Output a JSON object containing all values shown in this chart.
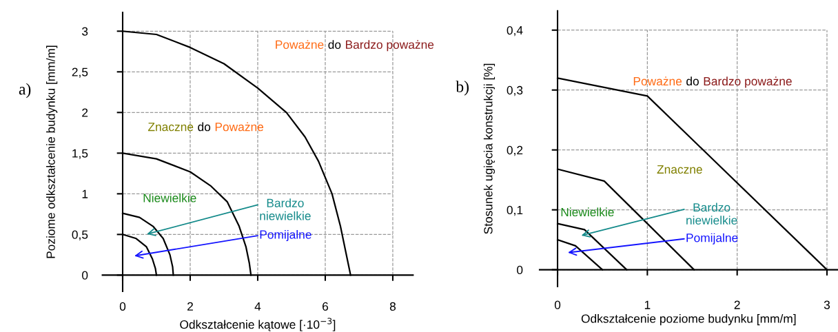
{
  "chart_data": [
    {
      "type": "line",
      "xlabel": "Odkształcenie kątowe [·10$^{−3}$]",
      "ylabel": "Poziome odkształcenie budynku [mm/m]",
      "xlim": [
        -0.6,
        8.6
      ],
      "ylim": [
        -0.2,
        3.23
      ],
      "xticks": [
        0,
        2,
        4,
        6,
        8
      ],
      "yticks": [
        0,
        {
          "value": 0.5,
          "label": "0,5"
        },
        1,
        {
          "value": 1.5,
          "label": "1,5"
        },
        2,
        {
          "value": 2.5,
          "label": "2,5"
        },
        3
      ],
      "grid": true,
      "series": [
        {
          "color": "#000000",
          "x": [
            0,
            0.4,
            0.7,
            0.88,
            0.97,
            1
          ],
          "values": [
            0.5,
            0.45,
            0.35,
            0.2,
            0.08,
            0
          ]
        },
        {
          "color": "#000000",
          "x": [
            0,
            0.5,
            0.9,
            1.2,
            1.4,
            1.48,
            1.5
          ],
          "values": [
            0.76,
            0.71,
            0.6,
            0.45,
            0.25,
            0.1,
            0
          ]
        },
        {
          "color": "#000000",
          "x": [
            0,
            1,
            2,
            2.6,
            3.1,
            3.45,
            3.65,
            3.75,
            3.8
          ],
          "values": [
            1.5,
            1.43,
            1.27,
            1.1,
            0.9,
            0.6,
            0.35,
            0.15,
            0
          ]
        },
        {
          "color": "#000000",
          "x": [
            0,
            1,
            2,
            3,
            4,
            4.85,
            5.4,
            5.8,
            6.2,
            6.45,
            6.6,
            6.75
          ],
          "values": [
            3,
            2.96,
            2.8,
            2.6,
            2.3,
            2.0,
            1.7,
            1.4,
            1.0,
            0.6,
            0.3,
            0
          ]
        }
      ],
      "annotations": [
        "a)",
        "Poważne",
        "do",
        "Bardzo poważne",
        "Znaczne",
        "do",
        "Poważne",
        "Niewielkie",
        "Bardzo\nniewielkie",
        "Pomijalne"
      ]
    },
    {
      "type": "line",
      "xlabel": "Odkształcenie poziome budynku [mm/m]",
      "ylabel": "Stosunek ugięcia konstrukcji [%]",
      "xlim": [
        -0.2,
        3.12
      ],
      "ylim": [
        -0.028,
        0.432
      ],
      "xticks": [
        0,
        1,
        2,
        3
      ],
      "yticks": [
        0,
        {
          "value": 0.1,
          "label": "0,1"
        },
        {
          "value": 0.2,
          "label": "0,2"
        },
        {
          "value": 0.3,
          "label": "0,3"
        },
        {
          "value": 0.4,
          "label": "0,4"
        }
      ],
      "grid": true,
      "series": [
        {
          "color": "#000000",
          "x": [
            0,
            0.2,
            0.5
          ],
          "values": [
            0.05,
            0.04,
            0
          ]
        },
        {
          "color": "#000000",
          "x": [
            0,
            0.3,
            0.77
          ],
          "values": [
            0.077,
            0.067,
            0
          ]
        },
        {
          "color": "#000000",
          "x": [
            0,
            0.52,
            1.52
          ],
          "values": [
            0.168,
            0.148,
            0
          ]
        },
        {
          "color": "#000000",
          "x": [
            0,
            1,
            3
          ],
          "values": [
            0.32,
            0.29,
            0
          ]
        }
      ],
      "annotations": [
        "b)",
        "Poważne",
        "do",
        "Bardzo poważne",
        "Znaczne",
        "Niewielkie",
        "Bardzo\nniewielkie",
        "Pomijalne"
      ]
    }
  ]
}
